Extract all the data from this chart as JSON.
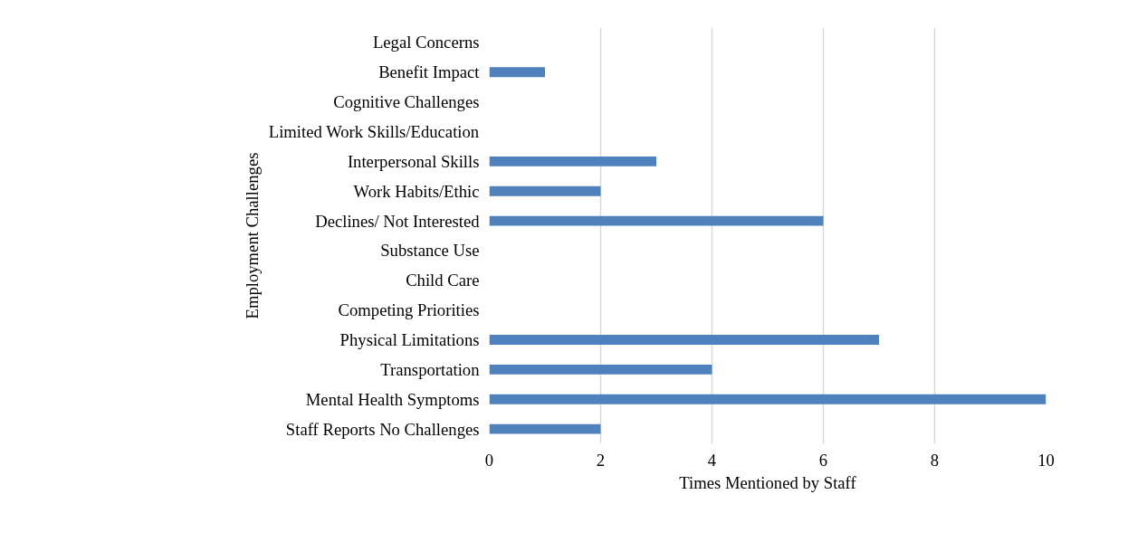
{
  "chart_data": {
    "type": "bar",
    "orientation": "horizontal",
    "xlabel": "Times Mentioned by Staff",
    "ylabel": "Employment Challenges",
    "categories": [
      "Legal Concerns",
      "Benefit Impact",
      "Cognitive Challenges",
      "Limited Work Skills/Education",
      "Interpersonal Skills",
      "Work Habits/Ethic",
      "Declines/ Not Interested",
      "Substance Use",
      "Child Care",
      "Competing Priorities",
      "Physical Limitations",
      "Transportation",
      "Mental Health Symptoms",
      "Staff Reports No Challenges"
    ],
    "values": [
      0,
      1,
      0,
      0,
      3,
      2,
      6,
      0,
      0,
      0,
      7,
      4,
      10,
      2
    ],
    "color": "#4f81bd",
    "xlim": [
      0,
      10
    ],
    "xticks": [
      0,
      2,
      4,
      6,
      8,
      10
    ],
    "grid": "x"
  }
}
